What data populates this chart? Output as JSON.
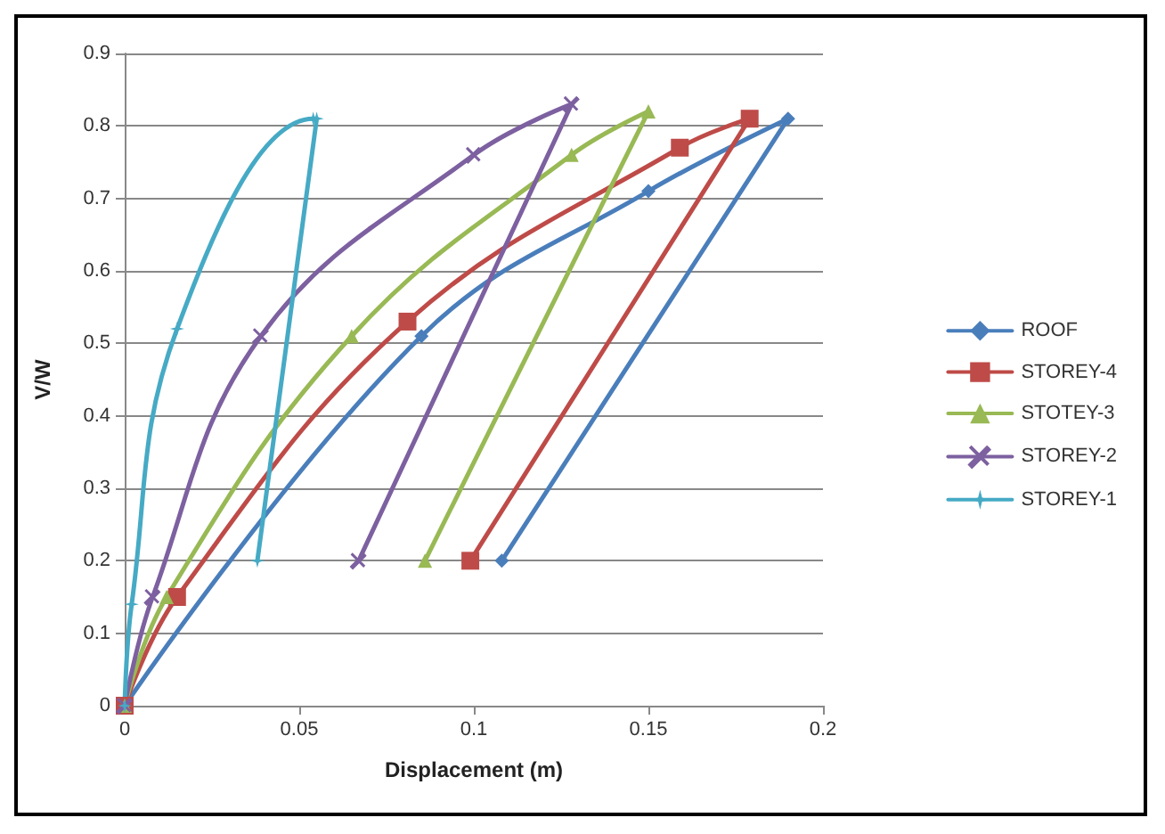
{
  "chart_data": {
    "type": "line",
    "xlabel": "Displacement (m)",
    "ylabel": "V/W",
    "xlim": [
      0,
      0.2
    ],
    "xticks": [
      0,
      0.05,
      0.1,
      0.15,
      0.2
    ],
    "ylim": [
      0,
      0.9
    ],
    "yticks": [
      0,
      0.1,
      0.2,
      0.3,
      0.4,
      0.5,
      0.6,
      0.7,
      0.8,
      0.9
    ],
    "grid": "y",
    "legend": "right",
    "line_style": "solid",
    "series": [
      {
        "name": "ROOF",
        "color": "#4a7ebb",
        "marker": "diamond",
        "x": [
          0,
          0.015,
          0.085,
          0.15,
          0.19,
          0.108
        ],
        "values": [
          0,
          null,
          0.51,
          0.71,
          0.81,
          0.2
        ]
      },
      {
        "name": "STOREY-4",
        "color": "#be4b48",
        "marker": "square",
        "x": [
          0,
          0.015,
          0.081,
          0.159,
          0.179,
          0.099
        ],
        "values": [
          0,
          0.15,
          0.53,
          0.77,
          0.81,
          0.2
        ]
      },
      {
        "name": "STOTEY-3",
        "color": "#98b954",
        "marker": "triangle",
        "x": [
          0,
          0.012,
          0.065,
          0.128,
          0.15,
          0.086
        ],
        "values": [
          0,
          0.15,
          0.51,
          0.76,
          0.82,
          0.2
        ]
      },
      {
        "name": "STOREY-2",
        "color": "#7d60a0",
        "marker": "cross",
        "x": [
          0,
          0.008,
          0.039,
          0.1,
          0.128,
          0.067
        ],
        "values": [
          0,
          0.15,
          0.51,
          0.76,
          0.83,
          0.2
        ]
      },
      {
        "name": "STOREY-1",
        "color": "#46aac5",
        "marker": "star",
        "x": [
          0,
          0.002,
          0.015,
          0.054,
          0.055,
          0.038
        ],
        "values": [
          0,
          0.14,
          0.52,
          0.81,
          0.81,
          0.2
        ]
      }
    ]
  }
}
